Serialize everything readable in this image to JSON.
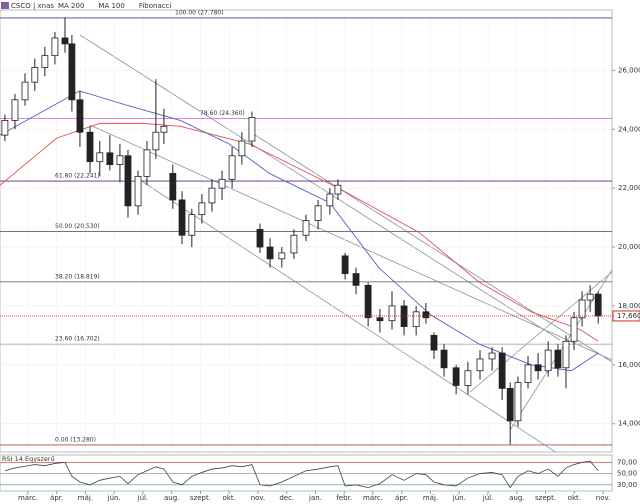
{
  "chart_data": {
    "type": "candlestick",
    "title": "CSCO | xnas",
    "x": [
      -0.8,
      -0.45,
      -0.1,
      0.24,
      0.59,
      0.94,
      1.29,
      1.53,
      1.81,
      2.16,
      2.5,
      2.85,
      3.2,
      3.48,
      3.83,
      4.14,
      4.45,
      4.73,
      5.04,
      5.36,
      5.7,
      6.05,
      6.4,
      6.75,
      7.1,
      7.44,
      7.79,
      8.07,
      8.42,
      8.83,
      9.25,
      9.67,
      10.09,
      10.5,
      10.78,
      11.03,
      11.41,
      11.83,
      12.24,
      12.66,
      13.08,
      13.5,
      13.84,
      14.12,
      14.47,
      14.89,
      15.3,
      15.72,
      16.14,
      16.49,
      16.77,
      17.04,
      17.39,
      17.74,
      18.09,
      18.43,
      18.71,
      18.99,
      19.27,
      19.55,
      19.83
    ],
    "open": [
      23.8,
      24.3,
      25.0,
      25.6,
      26.1,
      26.5,
      27.1,
      26.9,
      25.0,
      23.9,
      22.9,
      23.2,
      22.8,
      23.1,
      21.4,
      22.4,
      23.3,
      23.9,
      22.5,
      21.6,
      20.4,
      21.1,
      21.5,
      22.0,
      22.3,
      23.1,
      23.6,
      20.6,
      20.0,
      19.6,
      19.8,
      20.4,
      20.9,
      21.4,
      21.8,
      19.7,
      19.1,
      18.7,
      17.6,
      17.5,
      18.0,
      17.3,
      17.8,
      17.0,
      16.5,
      15.9,
      15.3,
      15.8,
      16.2,
      16.4,
      15.2,
      14.1,
      15.4,
      16.0,
      15.8,
      16.5,
      15.9,
      16.8,
      17.6,
      18.2,
      18.4
    ],
    "high": [
      24.5,
      25.2,
      25.9,
      26.4,
      26.8,
      27.3,
      27.8,
      27.2,
      25.3,
      24.1,
      23.6,
      23.8,
      23.5,
      23.3,
      22.6,
      23.6,
      25.7,
      24.7,
      22.8,
      21.9,
      21.3,
      21.8,
      22.3,
      22.6,
      23.4,
      23.9,
      24.6,
      20.8,
      20.3,
      20.0,
      20.6,
      21.1,
      21.6,
      22.0,
      22.3,
      19.8,
      19.3,
      18.8,
      17.9,
      18.5,
      18.2,
      18.0,
      18.1,
      17.1,
      16.7,
      16.0,
      16.1,
      16.5,
      16.6,
      16.6,
      15.4,
      15.6,
      16.3,
      16.4,
      16.8,
      16.7,
      17.0,
      17.8,
      18.5,
      18.7,
      18.5
    ],
    "low": [
      23.6,
      24.0,
      24.8,
      25.3,
      25.8,
      26.2,
      26.6,
      24.6,
      23.4,
      22.5,
      22.4,
      22.6,
      22.2,
      21.0,
      21.1,
      22.1,
      23.0,
      23.5,
      21.3,
      20.1,
      20.0,
      20.8,
      21.2,
      21.6,
      22.0,
      22.8,
      23.4,
      19.8,
      19.3,
      19.3,
      19.6,
      20.2,
      20.6,
      21.1,
      21.6,
      18.9,
      18.4,
      17.3,
      17.1,
      17.2,
      17.0,
      17.0,
      17.4,
      16.2,
      15.6,
      15.0,
      15.0,
      15.5,
      15.8,
      14.8,
      13.3,
      13.9,
      15.2,
      15.5,
      15.6,
      15.6,
      15.2,
      16.5,
      17.3,
      17.8,
      17.4
    ],
    "close": [
      24.3,
      25.0,
      25.6,
      26.1,
      26.5,
      27.1,
      26.9,
      25.0,
      23.9,
      22.9,
      23.2,
      22.8,
      23.1,
      21.4,
      22.4,
      23.3,
      23.9,
      24.1,
      21.6,
      20.4,
      21.1,
      21.5,
      22.0,
      22.3,
      23.1,
      23.6,
      24.4,
      20.0,
      19.6,
      19.8,
      20.4,
      20.9,
      21.4,
      21.8,
      22.1,
      19.1,
      18.7,
      17.6,
      17.5,
      18.0,
      17.3,
      17.8,
      17.6,
      16.5,
      15.9,
      15.3,
      15.8,
      16.2,
      16.4,
      15.2,
      14.1,
      15.4,
      16.0,
      15.8,
      16.5,
      15.9,
      16.8,
      17.6,
      18.2,
      18.4,
      17.66
    ],
    "series": [
      {
        "name": "MA 200",
        "color": "#e05050",
        "x": [
          -0.97,
          1.0,
          2.5,
          4.0,
          5.3,
          7.7,
          10.8,
          13.6,
          15.7,
          17.5,
          19.2,
          19.83
        ],
        "values": [
          22.1,
          23.7,
          24.2,
          24.2,
          24.1,
          23.5,
          22.0,
          20.5,
          18.8,
          17.8,
          17.2,
          16.8
        ]
      },
      {
        "name": "MA 100",
        "color": "#5060c0",
        "x": [
          -0.97,
          0.5,
          1.8,
          3.5,
          5.3,
          7.0,
          8.4,
          10.5,
          12.2,
          14.0,
          15.7,
          17.5,
          18.9,
          19.83
        ],
        "values": [
          23.8,
          24.6,
          25.3,
          24.8,
          24.3,
          23.5,
          22.5,
          21.5,
          19.3,
          17.7,
          16.7,
          16.0,
          15.8,
          16.4
        ]
      }
    ],
    "legend": [
      "MA 200",
      "MA 100",
      "Fibonacci"
    ],
    "fibonacci": [
      {
        "label": "100.00 (27.780)",
        "value": 27.78,
        "color": "#404090"
      },
      {
        "label": "78.60 (24.360)",
        "value": 24.36,
        "color": "#d060d0"
      },
      {
        "label": "61.80 (22.241)",
        "value": 22.241,
        "color": "#602080"
      },
      {
        "label": "50.00 (20.530)",
        "value": 20.53,
        "color": "#606060"
      },
      {
        "label": "38.20 (18.819)",
        "value": 18.819,
        "color": "#707070"
      },
      {
        "label": "23.60 (16.702)",
        "value": 16.702,
        "color": "#c0a0a0"
      },
      {
        "label": "0.00 (13.280)",
        "value": 13.28,
        "color": "#c04040"
      }
    ],
    "last_price": {
      "value": 17.66,
      "label": "17,660"
    },
    "xlim": [
      -0.97,
      20.31
    ],
    "xticks": [
      {
        "value": 0,
        "label": "márc."
      },
      {
        "value": 1,
        "label": "ápr."
      },
      {
        "value": 2,
        "label": "máj."
      },
      {
        "value": 3,
        "label": "jún."
      },
      {
        "value": 4,
        "label": "júl."
      },
      {
        "value": 5,
        "label": "aug."
      },
      {
        "value": 6,
        "label": "szept."
      },
      {
        "value": 7,
        "label": "okt."
      },
      {
        "value": 8,
        "label": "nov."
      },
      {
        "value": 9,
        "label": "dec."
      },
      {
        "value": 10,
        "label": "jan."
      },
      {
        "value": 11,
        "label": "febr."
      },
      {
        "value": 12,
        "label": "márc."
      },
      {
        "value": 13,
        "label": "ápr."
      },
      {
        "value": 14,
        "label": "máj."
      },
      {
        "value": 15,
        "label": "jún."
      },
      {
        "value": 16,
        "label": "júl."
      },
      {
        "value": 17,
        "label": "aug."
      },
      {
        "value": 18,
        "label": "szept."
      },
      {
        "value": 19,
        "label": "okt."
      },
      {
        "value": 20,
        "label": "nov."
      }
    ],
    "ylim": [
      13.04,
      28.05
    ],
    "yticks": [
      {
        "value": 14,
        "label": "14,000"
      },
      {
        "value": 16,
        "label": "16,000"
      },
      {
        "value": 18,
        "label": "18,000"
      },
      {
        "value": 20,
        "label": "20,000"
      },
      {
        "value": 22,
        "label": "22,000"
      },
      {
        "value": 24,
        "label": "24,000"
      },
      {
        "value": 26,
        "label": "26,000"
      }
    ],
    "grid": true,
    "rsi": {
      "title": "RSI 14 Egyszerű",
      "color": "#404060",
      "values": [
        55,
        60,
        63,
        66,
        64,
        68,
        70,
        45,
        35,
        30,
        38,
        42,
        45,
        32,
        48,
        55,
        62,
        58,
        35,
        30,
        45,
        52,
        58,
        60,
        64,
        62,
        66,
        30,
        28,
        35,
        45,
        55,
        58,
        62,
        64,
        28,
        30,
        25,
        32,
        48,
        38,
        50,
        48,
        35,
        30,
        28,
        42,
        50,
        52,
        48,
        25,
        45,
        55,
        50,
        58,
        45,
        60,
        66,
        70,
        72,
        55
      ],
      "ylim": [
        19,
        83
      ],
      "yticks": [
        {
          "value": 30,
          "label": "30,00"
        },
        {
          "value": 50,
          "label": "50,00"
        },
        {
          "value": 70,
          "label": "70,00"
        }
      ]
    }
  }
}
